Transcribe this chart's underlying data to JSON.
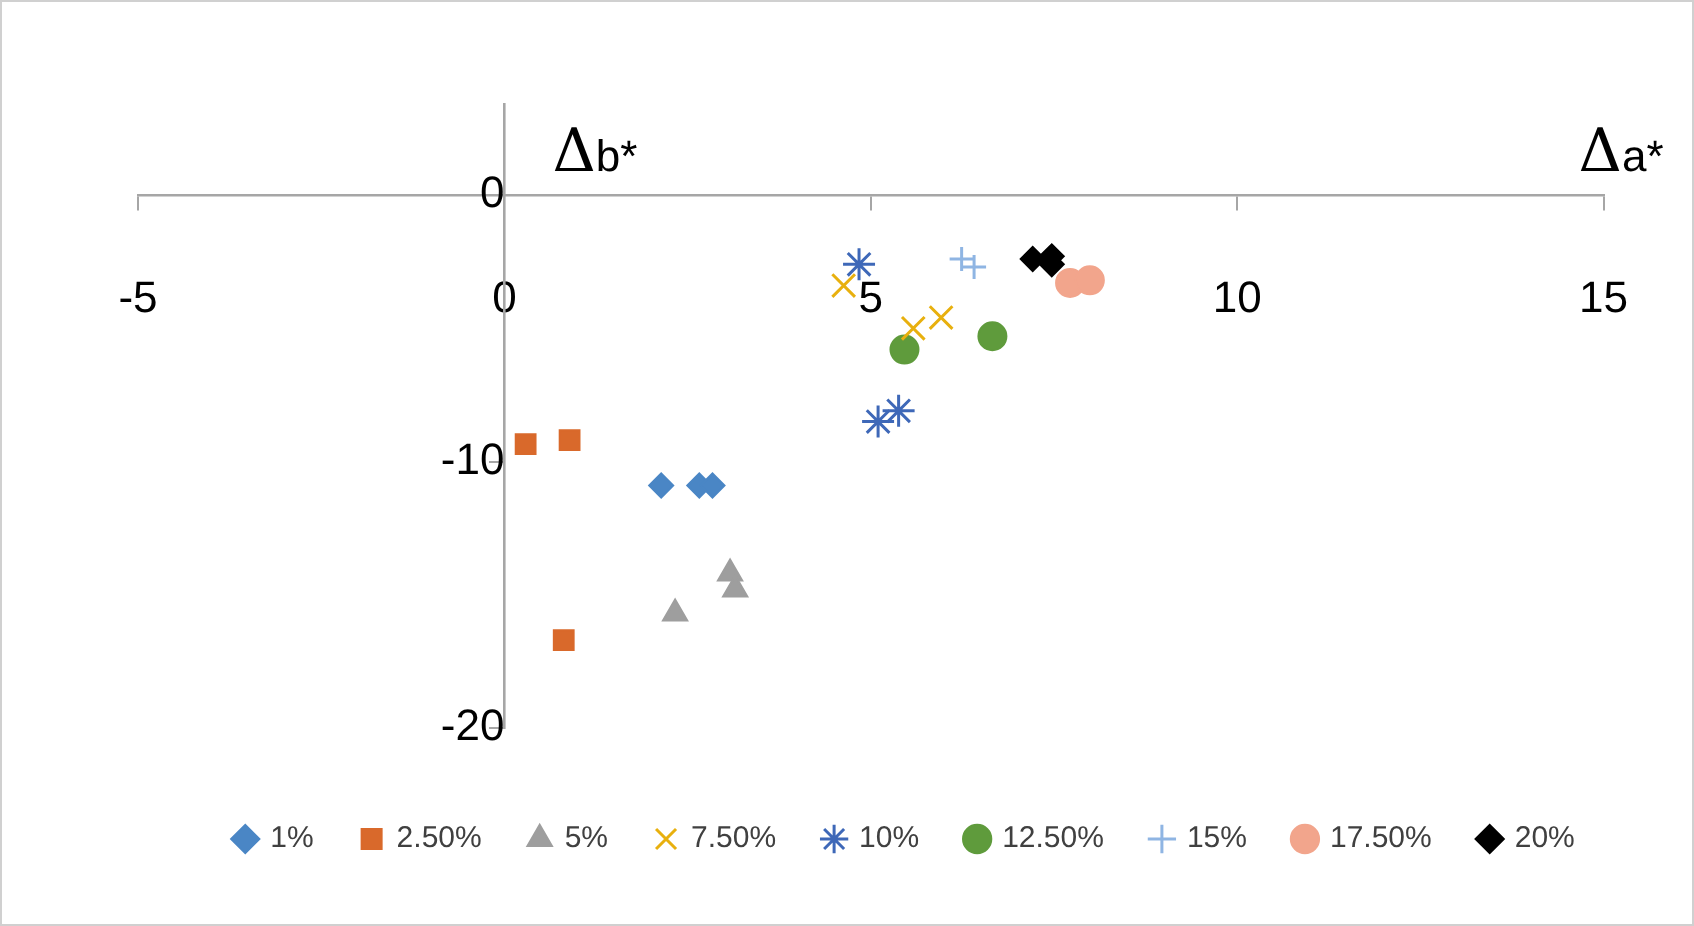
{
  "chart_data": {
    "type": "scatter",
    "xlabel": "Δa*",
    "ylabel": "Δb*",
    "xlim": [
      -5,
      15
    ],
    "xticks": [
      -5,
      0,
      5,
      10,
      15
    ],
    "ylim": [
      -20,
      3.4
    ],
    "yticks": [
      -20,
      -10,
      0
    ],
    "grid": false,
    "legend": "bottom",
    "series": [
      {
        "name": "1%",
        "color": "#4a86c5",
        "marker": "diamond",
        "x": [
          2.14,
          2.66,
          2.84
        ],
        "values": [
          -10.9,
          -10.9,
          -10.9
        ]
      },
      {
        "name": "2.50%",
        "color": "#d9692b",
        "marker": "square",
        "x": [
          0.29,
          0.89,
          0.81
        ],
        "values": [
          -9.35,
          -9.2,
          -16.7
        ]
      },
      {
        "name": "5%",
        "color": "#9e9e9e",
        "marker": "triangle",
        "x": [
          2.33,
          3.08,
          3.15
        ],
        "values": [
          -15.7,
          -14.2,
          -14.8
        ]
      },
      {
        "name": "7.50%",
        "color": "#e8b00e",
        "marker": "x",
        "x": [
          4.63,
          5.58,
          5.96
        ],
        "values": [
          -3.4,
          -5.0,
          -4.6
        ]
      },
      {
        "name": "10%",
        "color": "#3e68b8",
        "marker": "cross",
        "x": [
          4.84,
          5.1,
          5.38
        ],
        "values": [
          -2.6,
          -8.5,
          -8.1
        ]
      },
      {
        "name": "12.50%",
        "color": "#5f9b3c",
        "marker": "circle",
        "x": [
          5.46,
          6.66
        ],
        "values": [
          -5.8,
          -5.3
        ]
      },
      {
        "name": "15%",
        "color": "#8fb5e3",
        "x": [
          6.24,
          6.41
        ],
        "values": [
          -2.4,
          -2.7
        ]
      },
      {
        "name": "17.50%",
        "color": "#f2a58c",
        "marker": "circle",
        "x": [
          7.72,
          7.99
        ],
        "values": [
          -3.3,
          -3.2
        ]
      },
      {
        "name": "20%",
        "color": "#000000",
        "marker": "diamond",
        "x": [
          7.21,
          7.47,
          7.47
        ],
        "values": [
          -2.4,
          -2.3,
          -2.6
        ]
      }
    ]
  }
}
